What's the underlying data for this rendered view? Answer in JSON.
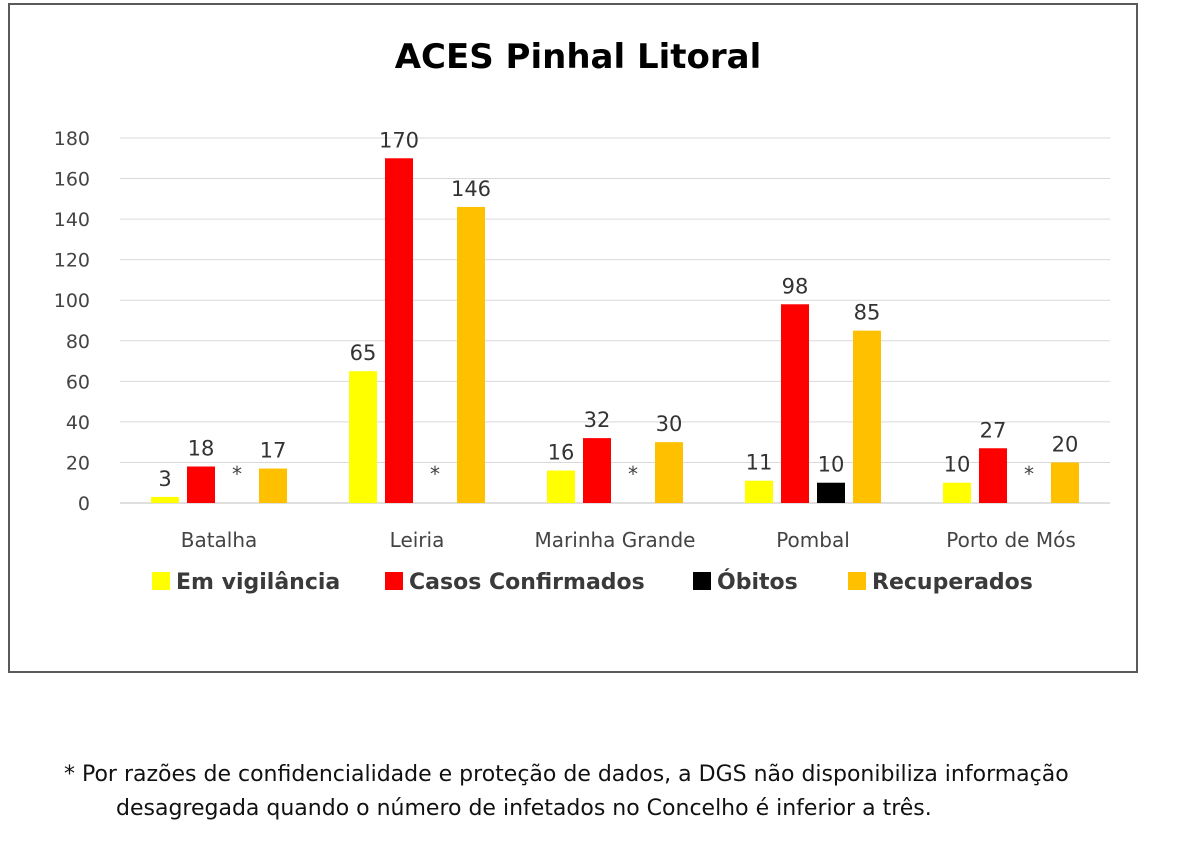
{
  "chart_data": {
    "type": "bar",
    "title": "ACES Pinhal Litoral",
    "categories": [
      "Batalha",
      "Leiria",
      "Marinha Grande",
      "Pombal",
      "Porto de Mós"
    ],
    "series": [
      {
        "name": "Em vigilância",
        "color": "#ffff00",
        "values": [
          3,
          65,
          16,
          11,
          10
        ]
      },
      {
        "name": "Casos Confirmados",
        "color": "#ff0000",
        "values": [
          18,
          170,
          32,
          98,
          27
        ]
      },
      {
        "name": "Óbitos",
        "color": "#000000",
        "values": [
          null,
          null,
          null,
          10,
          null
        ],
        "hidden_marker": "*"
      },
      {
        "name": "Recuperados",
        "color": "#ffc000",
        "values": [
          17,
          146,
          30,
          85,
          20
        ]
      }
    ],
    "ylim": [
      0,
      180
    ],
    "yticks": [
      0,
      20,
      40,
      60,
      80,
      100,
      120,
      140,
      160,
      180
    ],
    "grid": true,
    "legend_position": "bottom"
  },
  "footnote": {
    "line1": "* Por razões de confidencialidade e proteção de dados, a DGS não disponibiliza informação",
    "line2": "desagregada quando o número de infetados no Concelho é inferior a três."
  }
}
